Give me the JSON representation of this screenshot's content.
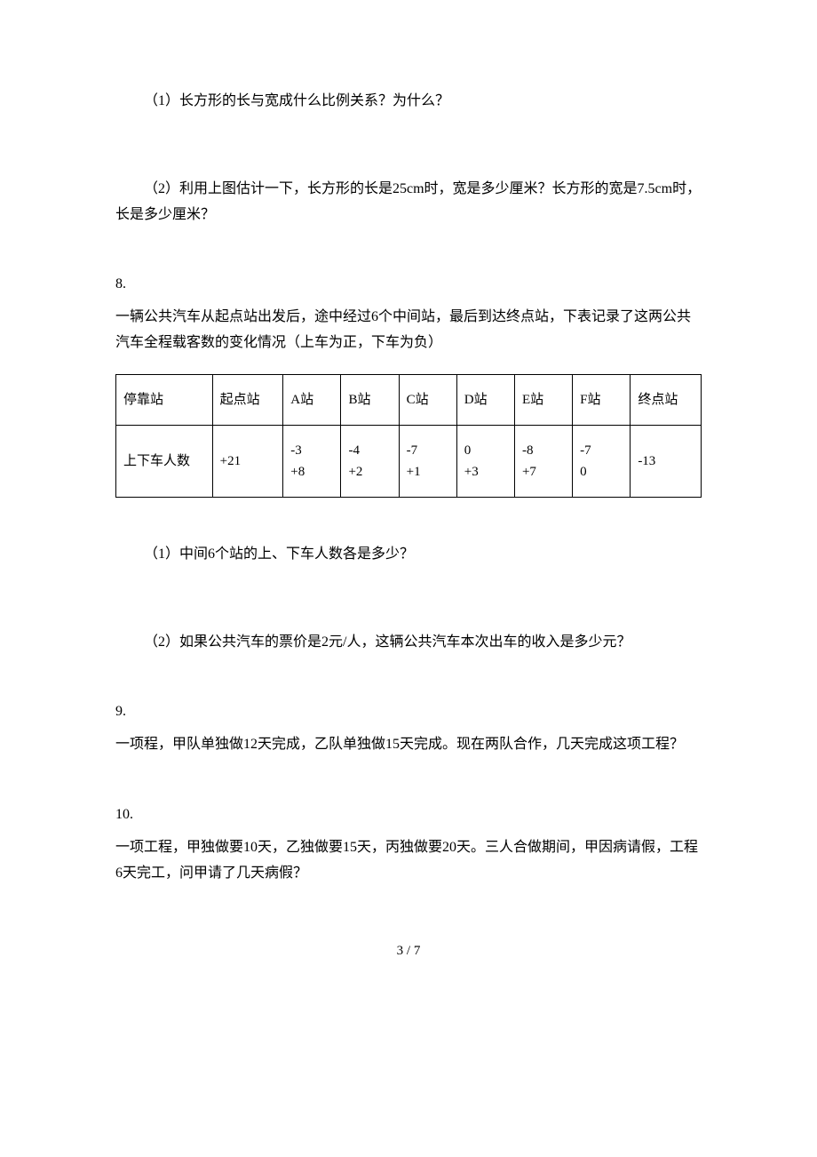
{
  "q7": {
    "part1": "（1）长方形的长与宽成什么比例关系？为什么？",
    "part2": "（2）利用上图估计一下，长方形的长是25cm时，宽是多少厘米？长方形的宽是7.5cm时，长是多少厘米？"
  },
  "q8": {
    "num": "8.",
    "text": "一辆公共汽车从起点站出发后，途中经过6个中间站，最后到达终点站，下表记录了这两公共汽车全程载客数的变化情况（上车为正，下车为负）",
    "table": {
      "headers": [
        "停靠站",
        "起点站",
        "A站",
        "B站",
        "C站",
        "D站",
        "E站",
        "F站",
        "终点站"
      ],
      "row_label": "上下车人数",
      "cells": {
        "start": "+21",
        "a_line1": "-3",
        "a_line2": "+8",
        "b_line1": "-4",
        "b_line2": "+2",
        "c_line1": "-7",
        "c_line2": "+1",
        "d_line1": "0",
        "d_line2": "+3",
        "e_line1": "-8",
        "e_line2": "+7",
        "f_line1": "-7",
        "f_line2": "0",
        "end": "-13"
      }
    },
    "part1": "（1）中间6个站的上、下车人数各是多少？",
    "part2": "（2）如果公共汽车的票价是2元/人，这辆公共汽车本次出车的收入是多少元？"
  },
  "q9": {
    "num": "9.",
    "text": "一项程，甲队单独做12天完成，乙队单独做15天完成。现在两队合作，几天完成这项工程？"
  },
  "q10": {
    "num": "10.",
    "text": "一项工程，甲独做要10天，乙独做要15天，丙独做要20天。三人合做期间，甲因病请假，工程6天完工，问甲请了几天病假？"
  },
  "page": "3 / 7"
}
